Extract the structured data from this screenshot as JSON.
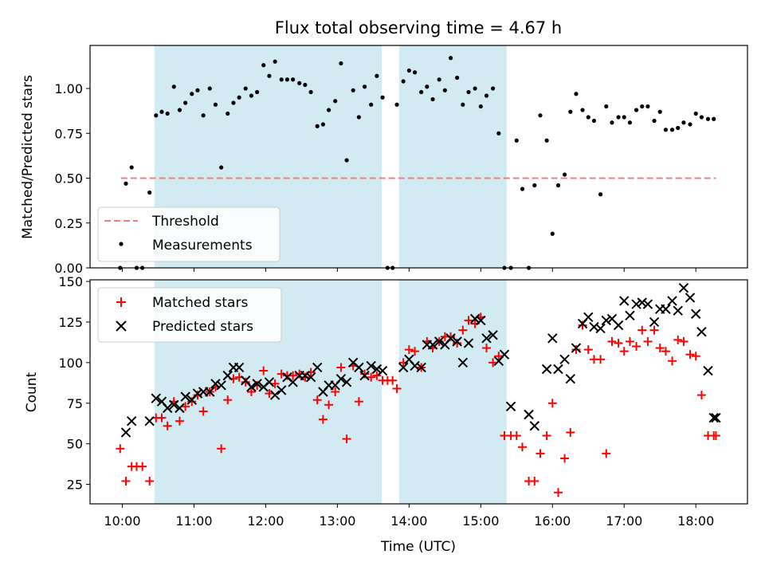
{
  "figure": {
    "title": "Flux total observing time = 4.67 h",
    "xlabel": "Time (UTC)",
    "x_ticks": [
      "10:00",
      "11:00",
      "12:00",
      "13:00",
      "14:00",
      "15:00",
      "16:00",
      "17:00",
      "18:00"
    ],
    "x_range_hours": [
      9.55,
      18.72
    ],
    "shaded_intervals_hours": [
      [
        10.45,
        13.62
      ],
      [
        13.86,
        15.36
      ]
    ],
    "shade_color": "#add8e6"
  },
  "chart_data": [
    {
      "type": "scatter",
      "ylabel": "Matched/Predicted stars",
      "ylim": [
        0,
        1.24
      ],
      "y_ticks": [
        "0.00",
        "0.25",
        "0.50",
        "0.75",
        "1.00"
      ],
      "y_tick_values": [
        0,
        0.25,
        0.5,
        0.75,
        1.0
      ],
      "legend_position": "lower-left",
      "threshold": {
        "name": "Threshold",
        "value": 0.5,
        "x_start": 9.98,
        "x_end": 18.28,
        "color": "#f08080"
      },
      "series": [
        {
          "name": "Measurements",
          "color": "#000000",
          "x": [
            9.97,
            10.05,
            10.13,
            10.2,
            10.28,
            10.38,
            10.47,
            10.55,
            10.63,
            10.72,
            10.8,
            10.88,
            10.97,
            11.05,
            11.13,
            11.22,
            11.3,
            11.38,
            11.47,
            11.55,
            11.63,
            11.72,
            11.8,
            11.88,
            11.97,
            12.05,
            12.13,
            12.22,
            12.3,
            12.38,
            12.47,
            12.55,
            12.63,
            12.72,
            12.8,
            12.88,
            12.97,
            13.05,
            13.13,
            13.22,
            13.3,
            13.38,
            13.47,
            13.55,
            13.63,
            13.7,
            13.77,
            13.83,
            13.92,
            14.0,
            14.08,
            14.17,
            14.25,
            14.33,
            14.42,
            14.5,
            14.58,
            14.67,
            14.75,
            14.83,
            14.92,
            15.0,
            15.08,
            15.17,
            15.25,
            15.33,
            15.42,
            15.5,
            15.58,
            15.67,
            15.75,
            15.83,
            15.92,
            16.0,
            16.08,
            16.17,
            16.25,
            16.33,
            16.42,
            16.5,
            16.58,
            16.67,
            16.75,
            16.83,
            16.92,
            17.0,
            17.08,
            17.17,
            17.25,
            17.33,
            17.42,
            17.5,
            17.58,
            17.67,
            17.75,
            17.83,
            17.92,
            18.0,
            18.08,
            18.17,
            18.25
          ],
          "y": [
            0.0,
            0.47,
            0.56,
            0.0,
            0.0,
            0.42,
            0.85,
            0.87,
            0.86,
            1.01,
            0.88,
            0.92,
            0.97,
            0.99,
            0.85,
            1.0,
            0.91,
            0.56,
            0.86,
            0.92,
            0.95,
            1.0,
            0.96,
            0.98,
            1.13,
            1.07,
            1.15,
            1.05,
            1.05,
            1.05,
            1.03,
            1.02,
            0.98,
            0.79,
            0.8,
            0.88,
            0.93,
            1.14,
            0.6,
            0.99,
            0.84,
            1.01,
            0.91,
            1.07,
            0.95,
            0.0,
            0.0,
            0.91,
            1.04,
            1.1,
            1.09,
            0.98,
            1.01,
            0.94,
            1.05,
            0.99,
            1.17,
            1.06,
            0.91,
            0.98,
            1.0,
            0.9,
            0.96,
            1.0,
            0.75,
            0.0,
            0.0,
            0.71,
            0.44,
            0.0,
            0.46,
            0.85,
            0.71,
            0.19,
            0.46,
            0.52,
            0.87,
            0.97,
            0.88,
            0.84,
            0.82,
            0.41,
            0.9,
            0.81,
            0.84,
            0.84,
            0.81,
            0.88,
            0.9,
            0.9,
            0.82,
            0.87,
            0.77,
            0.77,
            0.78,
            0.81,
            0.8,
            0.86,
            0.84,
            0.83,
            0.83
          ]
        }
      ]
    },
    {
      "type": "scatter",
      "ylabel": "Count",
      "ylim": [
        13,
        151
      ],
      "y_ticks": [
        "25",
        "50",
        "75",
        "100",
        "125",
        "150"
      ],
      "y_tick_values": [
        25,
        50,
        75,
        100,
        125,
        150
      ],
      "legend_position": "top-left",
      "series": [
        {
          "name": "Matched stars",
          "marker": "plus",
          "color": "#ff0000",
          "x": [
            9.97,
            10.05,
            10.13,
            10.2,
            10.28,
            10.38,
            10.47,
            10.55,
            10.63,
            10.72,
            10.8,
            10.88,
            10.97,
            11.05,
            11.13,
            11.22,
            11.3,
            11.38,
            11.47,
            11.55,
            11.63,
            11.72,
            11.8,
            11.88,
            11.97,
            12.05,
            12.13,
            12.22,
            12.3,
            12.38,
            12.47,
            12.55,
            12.63,
            12.72,
            12.8,
            12.88,
            12.97,
            13.05,
            13.13,
            13.22,
            13.3,
            13.38,
            13.47,
            13.55,
            13.63,
            13.7,
            13.77,
            13.83,
            13.92,
            14.0,
            14.08,
            14.17,
            14.25,
            14.33,
            14.42,
            14.5,
            14.58,
            14.67,
            14.75,
            14.83,
            14.92,
            15.0,
            15.08,
            15.17,
            15.25,
            15.33,
            15.42,
            15.5,
            15.58,
            15.67,
            15.75,
            15.83,
            15.92,
            16.0,
            16.08,
            16.17,
            16.25,
            16.33,
            16.42,
            16.5,
            16.58,
            16.67,
            16.75,
            16.83,
            16.92,
            17.0,
            17.08,
            17.17,
            17.25,
            17.33,
            17.42,
            17.5,
            17.58,
            17.67,
            17.75,
            17.83,
            17.92,
            18.0,
            18.08,
            18.17,
            18.25,
            18.28
          ],
          "y": [
            47,
            27,
            36,
            36,
            36,
            27,
            66,
            66,
            61,
            76,
            64,
            73,
            76,
            80,
            70,
            82,
            85,
            47,
            77,
            90,
            91,
            88,
            82,
            86,
            95,
            81,
            87,
            93,
            92,
            92,
            93,
            91,
            94,
            77,
            65,
            74,
            82,
            97,
            53,
            98,
            76,
            93,
            91,
            92,
            89,
            89,
            89,
            84,
            100,
            108,
            107,
            97,
            113,
            109,
            113,
            116,
            116,
            112,
            120,
            126,
            124,
            128,
            109,
            100,
            104,
            55,
            55,
            55,
            48,
            27,
            27,
            44,
            55,
            75,
            20,
            41,
            57,
            108,
            123,
            108,
            102,
            102,
            44,
            113,
            112,
            107,
            113,
            110,
            120,
            113,
            120,
            109,
            107,
            101,
            114,
            113,
            105,
            104,
            80,
            55,
            55,
            55
          ],
          "x_display": null
        },
        {
          "name": "Predicted stars",
          "marker": "cross",
          "color": "#000000",
          "x": [
            10.05,
            10.13,
            10.38,
            10.47,
            10.55,
            10.63,
            10.72,
            10.8,
            10.88,
            10.97,
            11.05,
            11.13,
            11.22,
            11.3,
            11.38,
            11.47,
            11.55,
            11.63,
            11.72,
            11.8,
            11.88,
            11.97,
            12.05,
            12.13,
            12.22,
            12.3,
            12.38,
            12.47,
            12.55,
            12.63,
            12.72,
            12.8,
            12.88,
            12.97,
            13.05,
            13.13,
            13.22,
            13.3,
            13.38,
            13.47,
            13.55,
            13.63,
            13.92,
            14.0,
            14.08,
            14.17,
            14.25,
            14.33,
            14.42,
            14.5,
            14.58,
            14.67,
            14.75,
            14.83,
            14.92,
            15.0,
            15.08,
            15.17,
            15.25,
            15.33,
            15.42,
            15.67,
            15.75,
            15.92,
            16.0,
            16.08,
            16.17,
            16.25,
            16.33,
            16.42,
            16.5,
            16.58,
            16.67,
            16.75,
            16.83,
            16.92,
            17.0,
            17.08,
            17.17,
            17.25,
            17.33,
            17.42,
            17.5,
            17.58,
            17.67,
            17.75,
            17.83,
            17.92,
            18.0,
            18.08,
            18.17,
            18.25,
            18.28
          ],
          "y": [
            57,
            64,
            64,
            78,
            76,
            72,
            74,
            72,
            79,
            77,
            81,
            82,
            82,
            87,
            86,
            92,
            97,
            97,
            89,
            85,
            87,
            85,
            88,
            80,
            83,
            91,
            88,
            92,
            92,
            91,
            97,
            82,
            86,
            86,
            90,
            88,
            100,
            97,
            92,
            98,
            96,
            95,
            97,
            102,
            98,
            97,
            111,
            111,
            113,
            111,
            115,
            113,
            100,
            112,
            127,
            126,
            115,
            117,
            101,
            105,
            73,
            68,
            61,
            96,
            115,
            96,
            102,
            90,
            109,
            124,
            128,
            122,
            121,
            126,
            127,
            123,
            138,
            129,
            136,
            137,
            136,
            125,
            133,
            133,
            138,
            132,
            146,
            140,
            130,
            119,
            95,
            66,
            66
          ]
        }
      ]
    }
  ]
}
